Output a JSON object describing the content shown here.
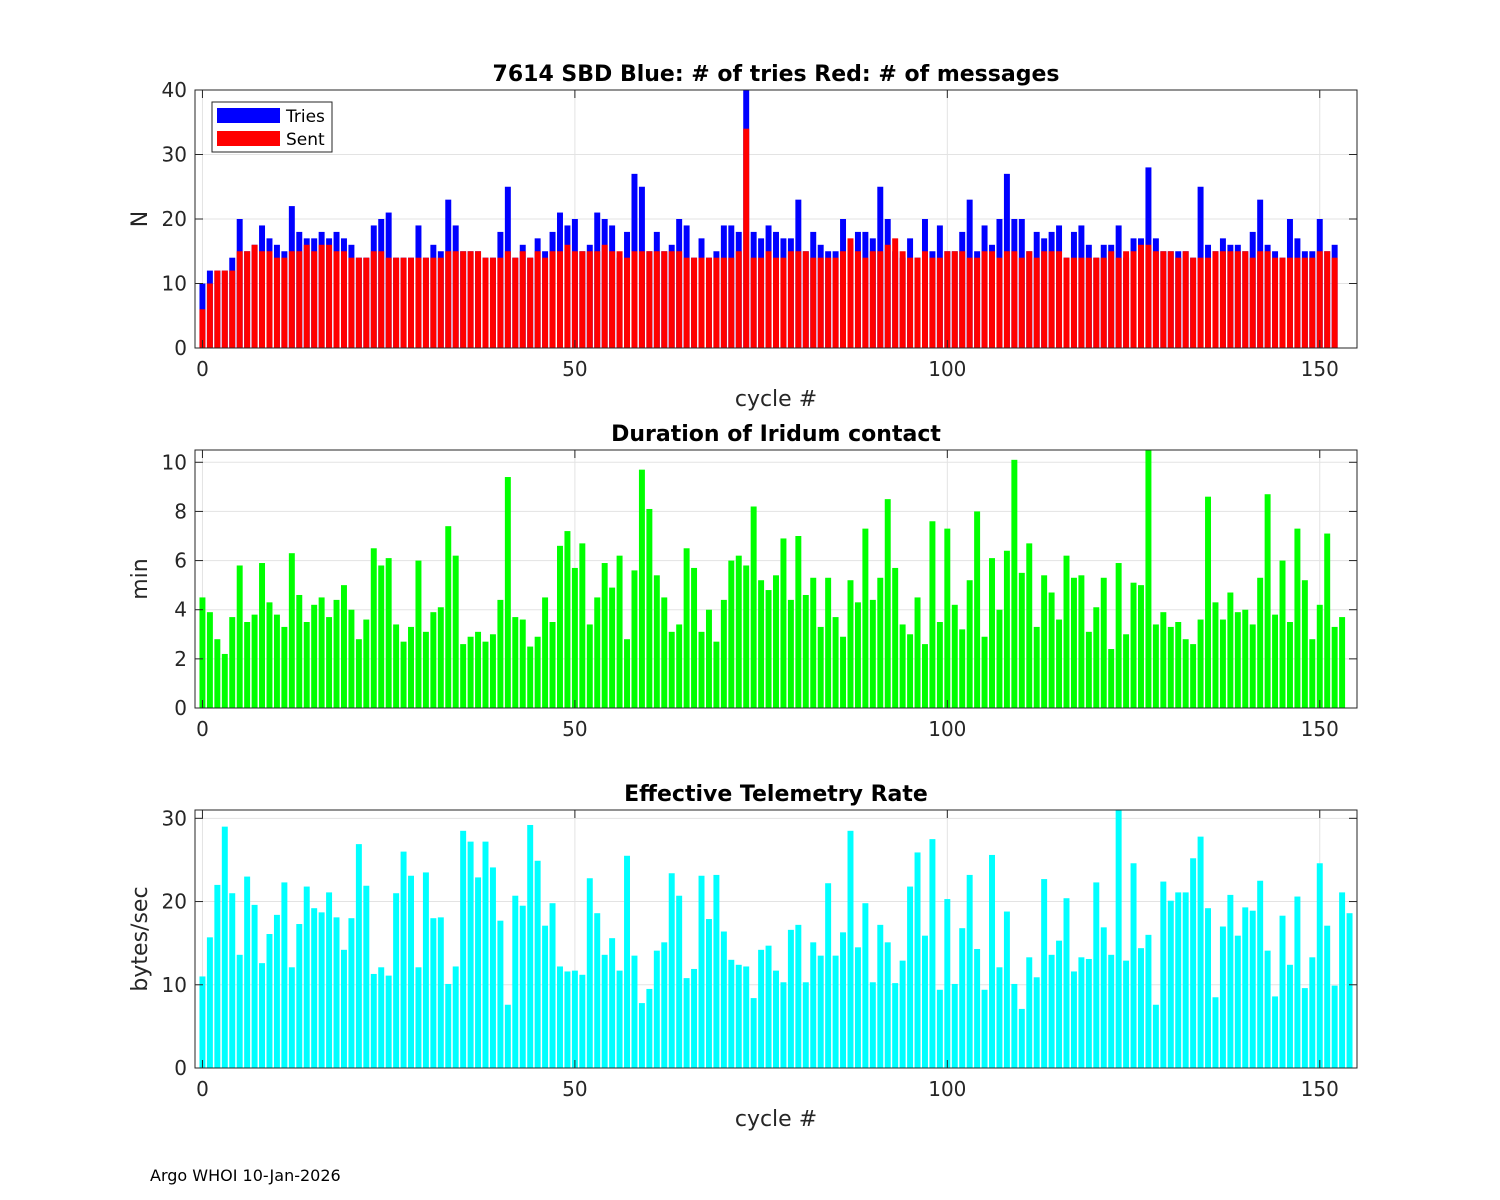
{
  "chart_data": [
    {
      "type": "bar",
      "stacked_overlay": true,
      "title": "7614 SBD  Blue: # of tries   Red: # of messages",
      "xlabel": "cycle #",
      "ylabel": "N",
      "xlim": [
        -1,
        155
      ],
      "ylim": [
        0,
        40
      ],
      "xticks": [
        0,
        50,
        100,
        150
      ],
      "yticks": [
        0,
        10,
        20,
        30,
        40
      ],
      "grid": true,
      "legend": {
        "placement": "top-left",
        "entries": [
          "Tries",
          "Sent"
        ]
      },
      "colors": {
        "Tries": "#0000ff",
        "Sent": "#ff0000"
      },
      "series": [
        {
          "name": "Tries",
          "color": "#0000ff",
          "values": [
            10,
            12,
            12,
            12,
            14,
            20,
            15,
            16,
            19,
            17,
            16,
            15,
            22,
            18,
            17,
            17,
            18,
            17,
            18,
            17,
            16,
            14,
            14,
            19,
            20,
            21,
            14,
            14,
            14,
            19,
            14,
            16,
            15,
            23,
            19,
            15,
            15,
            15,
            14,
            14,
            18,
            25,
            14,
            16,
            14,
            17,
            15,
            18,
            21,
            19,
            20,
            15,
            16,
            21,
            20,
            19,
            14,
            18,
            27,
            25,
            15,
            18,
            15,
            16,
            20,
            19,
            14,
            17,
            14,
            15,
            19,
            19,
            18,
            40,
            18,
            17,
            19,
            18,
            17,
            17,
            23,
            15,
            18,
            16,
            15,
            15,
            20,
            16,
            18,
            18,
            17,
            25,
            20,
            15,
            14,
            17,
            14,
            20,
            15,
            19,
            15,
            15,
            18,
            23,
            15,
            19,
            16,
            20,
            27,
            20,
            20,
            15,
            18,
            17,
            18,
            19,
            14,
            18,
            19,
            16,
            14,
            16,
            16,
            19,
            14,
            17,
            17,
            28,
            17,
            15,
            15,
            15,
            15,
            14,
            25,
            16,
            15,
            17,
            16,
            16,
            15,
            18,
            23,
            16,
            15,
            14,
            20,
            17,
            15,
            15,
            20,
            15,
            16
          ]
        },
        {
          "name": "Sent",
          "color": "#ff0000",
          "values": [
            6,
            10,
            12,
            12,
            12,
            15,
            15,
            16,
            15,
            15,
            14,
            14,
            15,
            15,
            16,
            15,
            16,
            16,
            15,
            15,
            14,
            14,
            14,
            15,
            15,
            14,
            14,
            14,
            14,
            14,
            14,
            14,
            14,
            15,
            15,
            15,
            15,
            15,
            14,
            14,
            14,
            15,
            14,
            15,
            14,
            15,
            14,
            15,
            15,
            16,
            15,
            15,
            15,
            15,
            16,
            15,
            15,
            14,
            15,
            15,
            15,
            15,
            15,
            15,
            15,
            14,
            14,
            14,
            14,
            14,
            14,
            14,
            15,
            34,
            14,
            14,
            15,
            14,
            14,
            15,
            15,
            15,
            14,
            14,
            14,
            14,
            15,
            17,
            15,
            14,
            15,
            15,
            16,
            17,
            15,
            14,
            14,
            15,
            14,
            14,
            15,
            15,
            15,
            14,
            14,
            15,
            15,
            14,
            15,
            15,
            14,
            15,
            14,
            15,
            15,
            15,
            14,
            14,
            14,
            14,
            14,
            14,
            15,
            14,
            15,
            15,
            16,
            16,
            15,
            15,
            15,
            14,
            15,
            14,
            14,
            14,
            15,
            15,
            15,
            15,
            15,
            14,
            15,
            15,
            14,
            14,
            14,
            14,
            14,
            14,
            15,
            15,
            14
          ]
        }
      ]
    },
    {
      "type": "bar",
      "title": "Duration of Iridum contact",
      "xlabel": "",
      "ylabel": "min",
      "xlim": [
        -1,
        155
      ],
      "ylim": [
        0,
        10.5
      ],
      "xticks": [
        0,
        50,
        100,
        150
      ],
      "yticks": [
        0,
        2,
        4,
        6,
        8,
        10
      ],
      "grid": true,
      "color": "#00ff00",
      "values": [
        4.5,
        3.9,
        2.8,
        2.2,
        3.7,
        5.8,
        3.5,
        3.8,
        5.9,
        4.3,
        3.8,
        3.3,
        6.3,
        4.6,
        3.5,
        4.2,
        4.5,
        3.7,
        4.4,
        5.0,
        4.0,
        2.8,
        3.6,
        6.5,
        5.8,
        6.1,
        3.4,
        2.7,
        3.3,
        6.0,
        3.1,
        3.9,
        4.1,
        7.4,
        6.2,
        2.6,
        2.9,
        3.1,
        2.7,
        3.0,
        4.4,
        9.4,
        3.7,
        3.6,
        2.5,
        2.9,
        4.5,
        3.5,
        6.6,
        7.2,
        5.7,
        6.7,
        3.4,
        4.5,
        5.9,
        4.9,
        6.2,
        2.8,
        5.6,
        9.7,
        8.1,
        5.4,
        4.5,
        3.1,
        3.4,
        6.5,
        5.7,
        3.1,
        4.0,
        2.7,
        4.4,
        6.0,
        6.2,
        5.8,
        8.2,
        5.2,
        4.8,
        5.4,
        6.9,
        4.4,
        7.0,
        4.6,
        5.3,
        3.3,
        5.3,
        3.7,
        2.9,
        5.2,
        4.3,
        7.3,
        4.4,
        5.3,
        8.5,
        5.7,
        3.4,
        3.0,
        4.5,
        2.6,
        7.6,
        3.5,
        7.3,
        4.2,
        3.2,
        5.2,
        8.0,
        2.9,
        6.1,
        4.0,
        6.4,
        10.1,
        5.5,
        6.7,
        3.3,
        5.4,
        4.7,
        3.6,
        6.2,
        5.3,
        5.4,
        3.1,
        4.1,
        5.3,
        2.4,
        5.9,
        3.0,
        5.1,
        5.0,
        10.6,
        3.4,
        3.9,
        3.3,
        3.5,
        2.8,
        2.6,
        3.6,
        8.6,
        4.3,
        3.6,
        4.7,
        3.9,
        4.0,
        3.4,
        5.3,
        8.7,
        3.8,
        6.0,
        3.5,
        7.3,
        5.2,
        2.8,
        4.2,
        7.1,
        3.3,
        3.7
      ]
    },
    {
      "type": "bar",
      "title": "Effective Telemetry Rate",
      "xlabel": "cycle #",
      "ylabel": "bytes/sec",
      "xlim": [
        -1,
        155
      ],
      "ylim": [
        0,
        31
      ],
      "xticks": [
        0,
        50,
        100,
        150
      ],
      "yticks": [
        0,
        10,
        20,
        30
      ],
      "grid": true,
      "color": "#00ffff",
      "values": [
        11,
        15.7,
        22,
        29,
        21,
        13.6,
        23,
        19.6,
        12.6,
        16.1,
        18.4,
        22.3,
        12.1,
        17.3,
        21.8,
        19.2,
        18.7,
        21.1,
        18.1,
        14.2,
        18,
        26.9,
        21.9,
        11.3,
        12.1,
        11.1,
        21,
        26,
        23.1,
        12.1,
        23.5,
        18,
        18.1,
        10.1,
        12.2,
        28.5,
        27.2,
        22.9,
        27.2,
        24.1,
        17.7,
        7.6,
        20.7,
        19.5,
        29.2,
        24.9,
        17.1,
        19.8,
        12.2,
        11.6,
        11.7,
        11.2,
        22.8,
        18.6,
        13.6,
        15.6,
        11.7,
        25.5,
        13.5,
        7.8,
        9.5,
        14.1,
        15.1,
        23.4,
        20.7,
        10.8,
        11.9,
        23.1,
        17.9,
        23.2,
        16.4,
        13,
        12.4,
        12.2,
        8.4,
        14.2,
        14.7,
        11.7,
        10.3,
        16.6,
        17.2,
        10.3,
        15.1,
        13.5,
        22.2,
        13.5,
        16.3,
        28.5,
        14.5,
        19.8,
        10.3,
        17.2,
        15.1,
        10.2,
        12.9,
        21.8,
        25.9,
        15.9,
        27.5,
        9.4,
        20.3,
        10.1,
        16.8,
        23.2,
        14.3,
        9.4,
        25.6,
        12.1,
        18.8,
        10.1,
        7.1,
        13.3,
        10.9,
        22.7,
        13.6,
        15.3,
        20.4,
        11.6,
        13.3,
        13.1,
        22.3,
        16.9,
        13.6,
        31,
        12.9,
        24.6,
        14.4,
        16,
        7.6,
        22.4,
        20.1,
        21.1,
        21.1,
        25.2,
        27.8,
        19.2,
        8.5,
        17,
        20.8,
        15.9,
        19.3,
        18.9,
        22.5,
        14.1,
        8.6,
        18.3,
        12.4,
        20.6,
        9.6,
        13.3,
        24.6,
        17.1,
        9.9,
        21.1,
        18.6
      ]
    }
  ],
  "footer": "Argo WHOI 10-Jan-2026"
}
